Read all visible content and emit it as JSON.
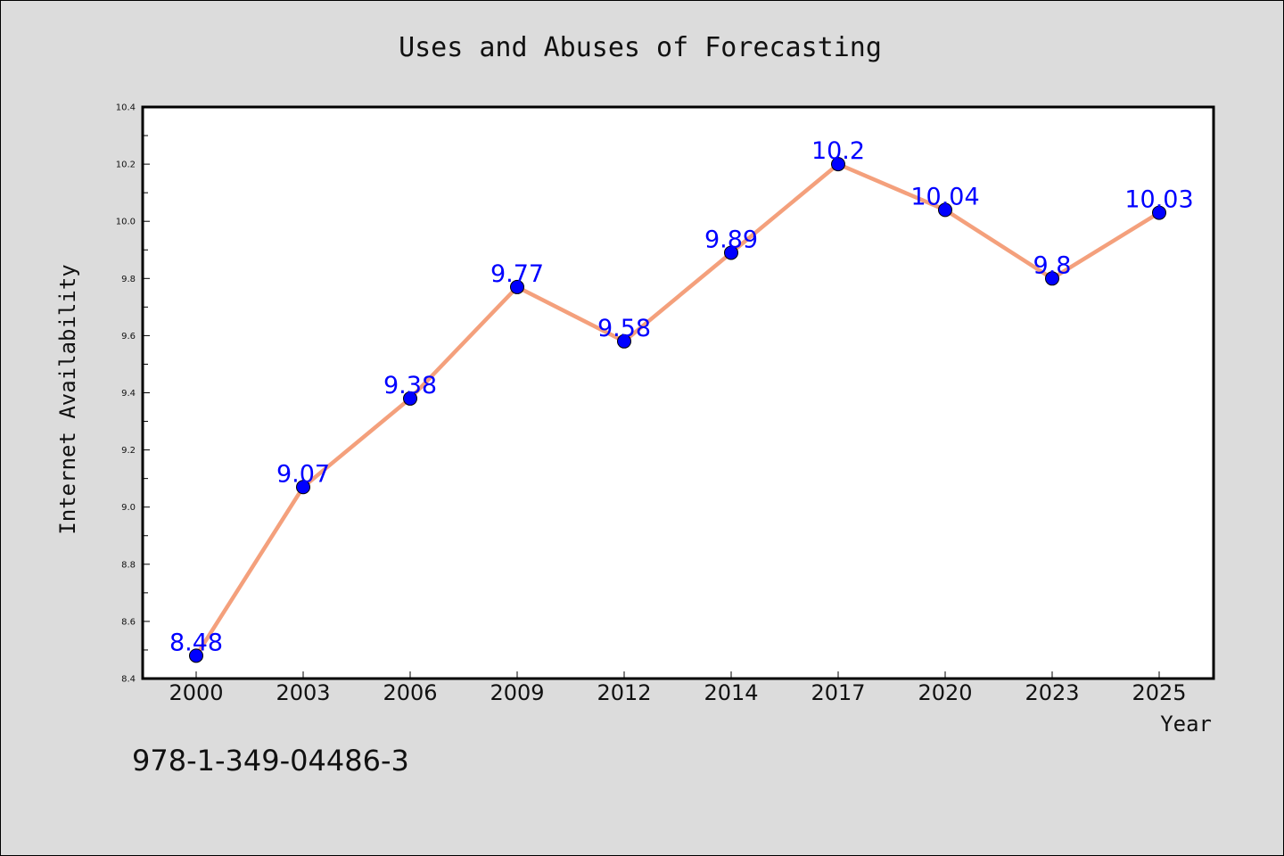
{
  "chart_data": {
    "type": "line",
    "title": "Uses and Abuses of Forecasting",
    "xlabel": "Year",
    "ylabel": "Internet Availability",
    "categories": [
      "2000",
      "2003",
      "2006",
      "2009",
      "2012",
      "2014",
      "2017",
      "2020",
      "2023",
      "2025"
    ],
    "values": [
      8.48,
      9.07,
      9.38,
      9.77,
      9.58,
      9.89,
      10.2,
      10.04,
      9.8,
      10.03
    ],
    "data_labels": [
      "8.48",
      "9.07",
      "9.38",
      "9.77",
      "9.58",
      "9.89",
      "10.2",
      "10.04",
      "9.8",
      "10.03"
    ],
    "ylim": [
      8.4,
      10.4
    ],
    "yticks": [
      "8.4",
      "8.6",
      "8.8",
      "9.0",
      "9.2",
      "9.4",
      "9.6",
      "9.8",
      "10.0",
      "10.2",
      "10.4"
    ],
    "grid": false,
    "line_color": "#f4a07c",
    "marker_color": "#0000ff",
    "label_color": "#0000ff"
  },
  "footer": {
    "isbn": "978-1-349-04486-3"
  }
}
